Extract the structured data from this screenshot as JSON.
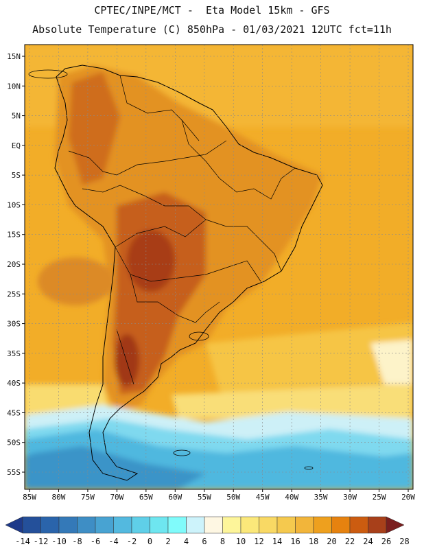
{
  "title_line1": "CPTEC/INPE/MCT -  Eta Model 15km - GFS",
  "title_line2": "Absolute Temperature (C) 850hPa - 01/03/2021 12UTC fct=11h",
  "lat_labels": [
    "15N",
    "10N",
    "5N",
    "EQ",
    "5S",
    "10S",
    "15S",
    "20S",
    "25S",
    "30S",
    "35S",
    "40S",
    "45S",
    "50S",
    "55S"
  ],
  "lon_labels": [
    "85W",
    "80W",
    "75W",
    "70W",
    "65W",
    "60W",
    "55W",
    "50W",
    "45W",
    "40W",
    "35W",
    "30W",
    "25W",
    "20W"
  ],
  "colorbar": {
    "labels": [
      "-14",
      "-12",
      "-10",
      "-8",
      "-6",
      "-4",
      "-2",
      "0",
      "2",
      "4",
      "6",
      "8",
      "10",
      "12",
      "14",
      "16",
      "18",
      "20",
      "22",
      "24",
      "26",
      "28"
    ],
    "colors": [
      "#1e3a8a",
      "#24509a",
      "#2a64ab",
      "#3479b8",
      "#3e8ec5",
      "#48a3d2",
      "#53b9df",
      "#5fcfe8",
      "#6ee6f0",
      "#80fbfb",
      "#cdf3fb",
      "#fef7e3",
      "#fdf59a",
      "#fbe87a",
      "#f9d964",
      "#f5c94e",
      "#f2b53a",
      "#eea01e",
      "#e6820f",
      "#cc5c10",
      "#a8401a",
      "#7a1e1e"
    ]
  },
  "colors": {
    "ocean_base": "#f2ad28",
    "land_base": "#e59a25",
    "warm_core": "#c2591c",
    "hot_core": "#a63a16",
    "cool_band": "#fbe68a",
    "cold_south": "#6ec9e6",
    "coast": "#000000"
  }
}
